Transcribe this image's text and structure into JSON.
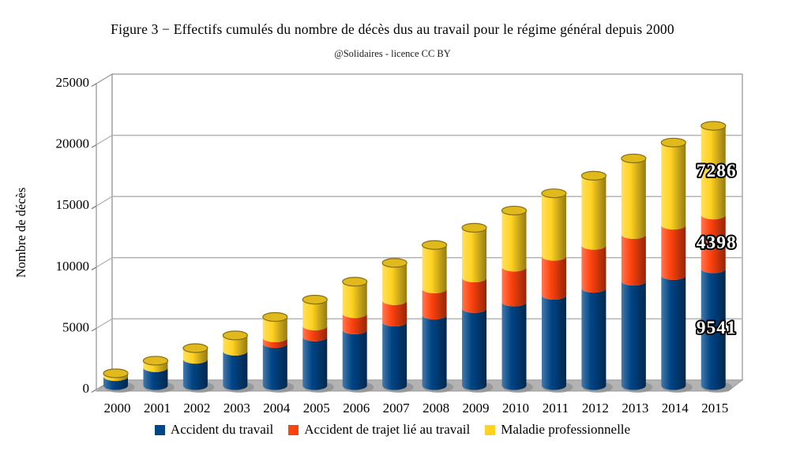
{
  "figure": {
    "title": "Figure 3 − Effectifs cumulés du nombre de décès dus au travail pour le régime général depuis 2000",
    "subtitle": "@Solidaires - licence CC BY"
  },
  "chart_data": {
    "type": "bar",
    "stacked": true,
    "style": "3d-cylinder",
    "title": "Figure 3 − Effectifs cumulés du nombre de décès dus au travail pour le régime général depuis 2000",
    "subtitle": "@Solidaires - licence CC BY",
    "xlabel": "",
    "ylabel": "Nombre de décès",
    "categories": [
      "2000",
      "2001",
      "2002",
      "2003",
      "2004",
      "2005",
      "2006",
      "2007",
      "2008",
      "2009",
      "2010",
      "2011",
      "2012",
      "2013",
      "2014",
      "2015"
    ],
    "series": [
      {
        "name": "Accident du travail",
        "color": "#004586",
        "values": [
          730,
          1463,
          2149,
          2810,
          3436,
          3973,
          4547,
          5188,
          5757,
          6295,
          6824,
          7376,
          7952,
          8527,
          8996,
          9541
        ]
      },
      {
        "name": "Accident de trajet lié au travail",
        "color": "#FF420E",
        "values": [
          0,
          0,
          0,
          0,
          460,
          900,
          1330,
          1750,
          2140,
          2500,
          2855,
          3185,
          3505,
          3815,
          4110,
          4398
        ]
      },
      {
        "name": "Maladie professionnelle",
        "color": "#FFD320",
        "values": [
          270,
          570,
          910,
          1290,
          1710,
          2150,
          2610,
          3090,
          3590,
          4100,
          4620,
          5150,
          5690,
          6220,
          6750,
          7286
        ]
      }
    ],
    "ylim": [
      0,
      25000
    ],
    "yticks": [
      0,
      5000,
      10000,
      15000,
      20000,
      25000
    ],
    "grid": true,
    "legend_position": "bottom",
    "data_labels": [
      {
        "category": "2015",
        "series": "Accident du travail",
        "value": 9541,
        "text": "9541"
      },
      {
        "category": "2015",
        "series": "Accident de trajet lié au travail",
        "value": 4398,
        "text": "4398"
      },
      {
        "category": "2015",
        "series": "Maladie professionnelle",
        "value": 7286,
        "text": "7286"
      }
    ],
    "colors": {
      "background": "#FFFFFF",
      "floor": "#B3B3B3",
      "shadow": "#8F8F8F",
      "gridline": "#B3B3B3",
      "wall_border": "#9A9A9A",
      "data_label_fill": "#FFFFFF",
      "data_label_outline": "#000000"
    }
  }
}
